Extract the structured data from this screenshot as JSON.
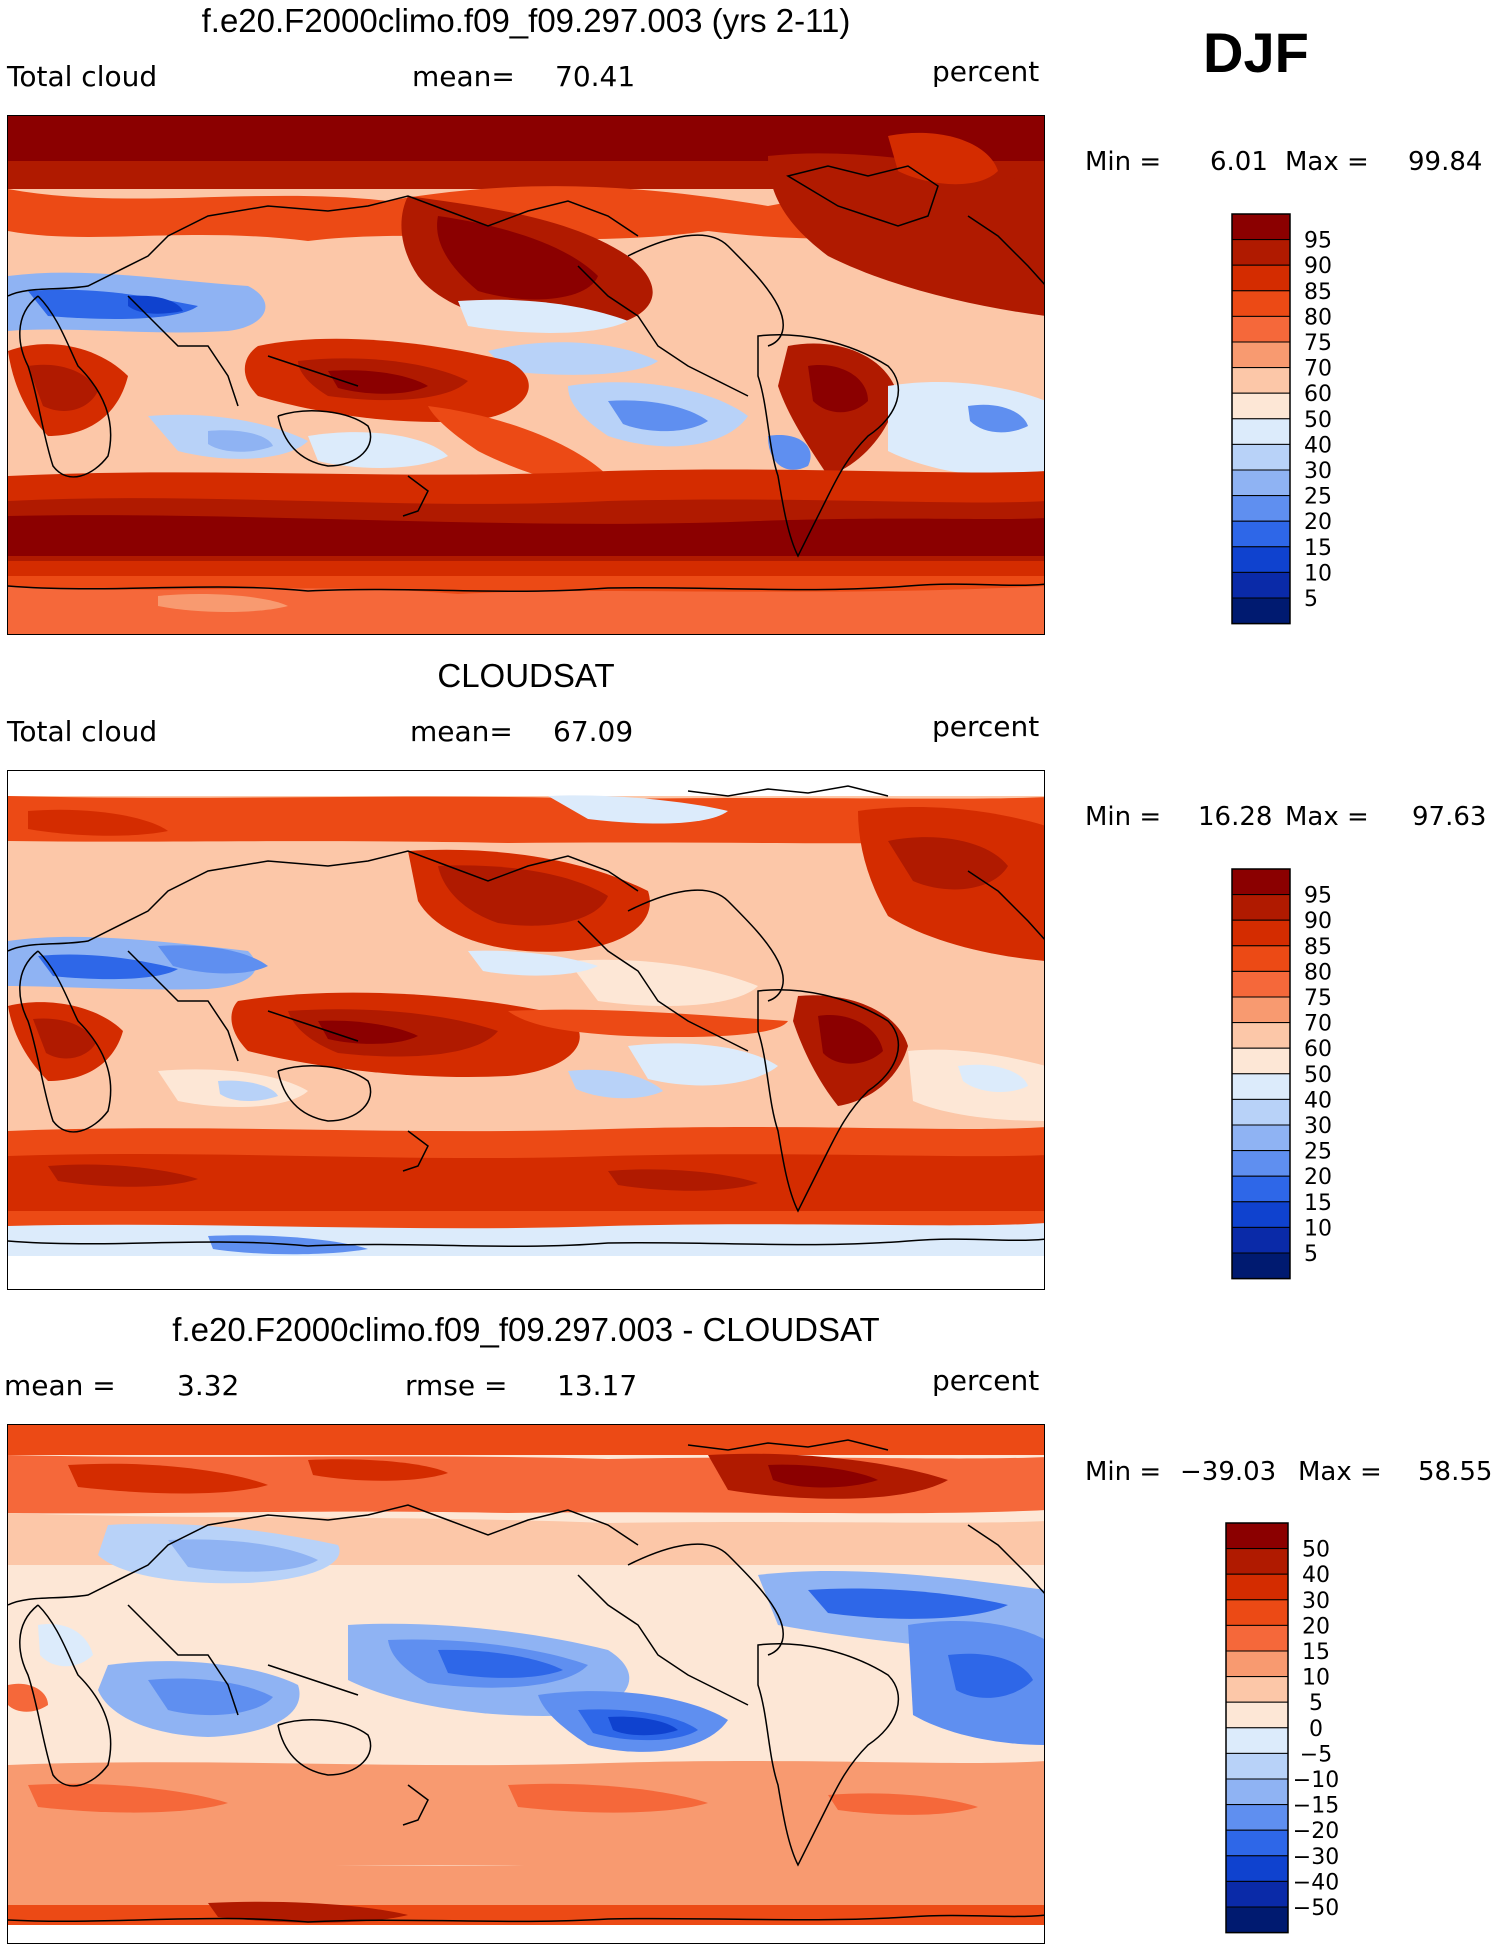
{
  "season_label": "DJF",
  "panels": [
    {
      "id": "model",
      "title": "f.e20.F2000climo.f09_f09.297.003 (yrs 2-11)",
      "left_label": "Total cloud",
      "center_label": "mean=",
      "center_value": "70.41",
      "right_label": "percent",
      "min_label": "Min =",
      "min_value": "6.01",
      "max_label": "Max =",
      "max_value": "99.84",
      "colorbar_labels": [
        "95",
        "90",
        "85",
        "80",
        "75",
        "70",
        "60",
        "50",
        "40",
        "30",
        "25",
        "20",
        "15",
        "10",
        "5"
      ],
      "colors": [
        "#8b0000",
        "#b01a00",
        "#d42c00",
        "#ec4a15",
        "#f5683a",
        "#f89a70",
        "#fcc7a8",
        "#fde7d6",
        "#dcebfb",
        "#b8d2f8",
        "#8fb3f3",
        "#5f8ff0",
        "#2e67e8",
        "#0f42cf",
        "#0a2aa8",
        "#001a70"
      ]
    },
    {
      "id": "obs",
      "title": "CLOUDSAT",
      "left_label": "Total cloud",
      "center_label": "mean=",
      "center_value": "67.09",
      "right_label": "percent",
      "min_label": "Min =",
      "min_value": "16.28",
      "max_label": "Max =",
      "max_value": "97.63",
      "colorbar_labels": [
        "95",
        "90",
        "85",
        "80",
        "75",
        "70",
        "60",
        "50",
        "40",
        "30",
        "25",
        "20",
        "15",
        "10",
        "5"
      ],
      "colors": [
        "#8b0000",
        "#b01a00",
        "#d42c00",
        "#ec4a15",
        "#f5683a",
        "#f89a70",
        "#fcc7a8",
        "#fde7d6",
        "#dcebfb",
        "#b8d2f8",
        "#8fb3f3",
        "#5f8ff0",
        "#2e67e8",
        "#0f42cf",
        "#0a2aa8",
        "#001a70"
      ]
    },
    {
      "id": "diff",
      "title": "f.e20.F2000climo.f09_f09.297.003 - CLOUDSAT",
      "left_label": "mean =",
      "left_value": "3.32",
      "center_label": "rmse =",
      "center_value": "13.17",
      "right_label": "percent",
      "min_label": "Min =",
      "min_value": "−39.03",
      "max_label": "Max =",
      "max_value": "58.55",
      "colorbar_labels": [
        "50",
        "40",
        "30",
        "20",
        "15",
        "10",
        "5",
        "0",
        "−5",
        "−10",
        "−15",
        "−20",
        "−30",
        "−40",
        "−50"
      ],
      "colors": [
        "#8b0000",
        "#b01a00",
        "#d42c00",
        "#ec4a15",
        "#f5683a",
        "#f89a70",
        "#fcc7a8",
        "#fde7d6",
        "#dcebfb",
        "#b8d2f8",
        "#8fb3f3",
        "#5f8ff0",
        "#2e67e8",
        "#0f42cf",
        "#0a2aa8",
        "#001a70"
      ]
    }
  ]
}
